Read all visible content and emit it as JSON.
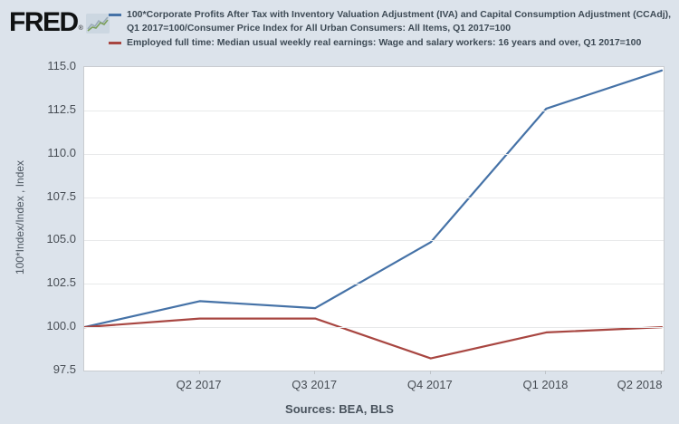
{
  "logo": {
    "text": "FRED",
    "registered": "®",
    "icon": "sparkline-chart-icon"
  },
  "legend": {
    "series": [
      {
        "lines": [
          "100*Corporate Profits After Tax with Inventory Valuation Adjustment (IVA) and Capital Consumption Adjustment (CCAdj),",
          "Q1 2017=100/Consumer Price Index for All Urban Consumers: All Items, Q1 2017=100"
        ]
      },
      {
        "lines": [
          "Employed full time: Median usual weekly real earnings: Wage and salary workers: 16 years and over, Q1 2017=100"
        ]
      }
    ]
  },
  "footer": {
    "sources": "Sources: BEA, BLS"
  },
  "chart_data": {
    "type": "line",
    "title": "",
    "xlabel": "",
    "ylabel": "100*Index/Index , Index",
    "ylim": [
      97.5,
      115.0
    ],
    "yticks": [
      97.5,
      100.0,
      102.5,
      105.0,
      107.5,
      110.0,
      112.5,
      115.0
    ],
    "categories": [
      "Q1 2017",
      "Q2 2017",
      "Q3 2017",
      "Q4 2017",
      "Q1 2018",
      "Q2 2018"
    ],
    "x_tick_labels": [
      "Q2 2017",
      "Q3 2017",
      "Q4 2017",
      "Q1 2018",
      "Q2 2018"
    ],
    "grid": true,
    "legend_position": "top",
    "series": [
      {
        "name": "100*Corporate Profits After Tax with Inventory Valuation Adjustment (IVA) and Capital Consumption Adjustment (CCAdj), Q1 2017=100/Consumer Price Index for All Urban Consumers: All Items, Q1 2017=100",
        "color": "#4572a7",
        "values": [
          100.0,
          101.5,
          101.1,
          104.9,
          112.6,
          114.8
        ]
      },
      {
        "name": "Employed full time: Median usual weekly real earnings: Wage and salary workers: 16 years and over, Q1 2017=100",
        "color": "#a84641",
        "values": [
          100.0,
          100.5,
          100.5,
          98.2,
          99.7,
          100.0
        ]
      }
    ]
  }
}
